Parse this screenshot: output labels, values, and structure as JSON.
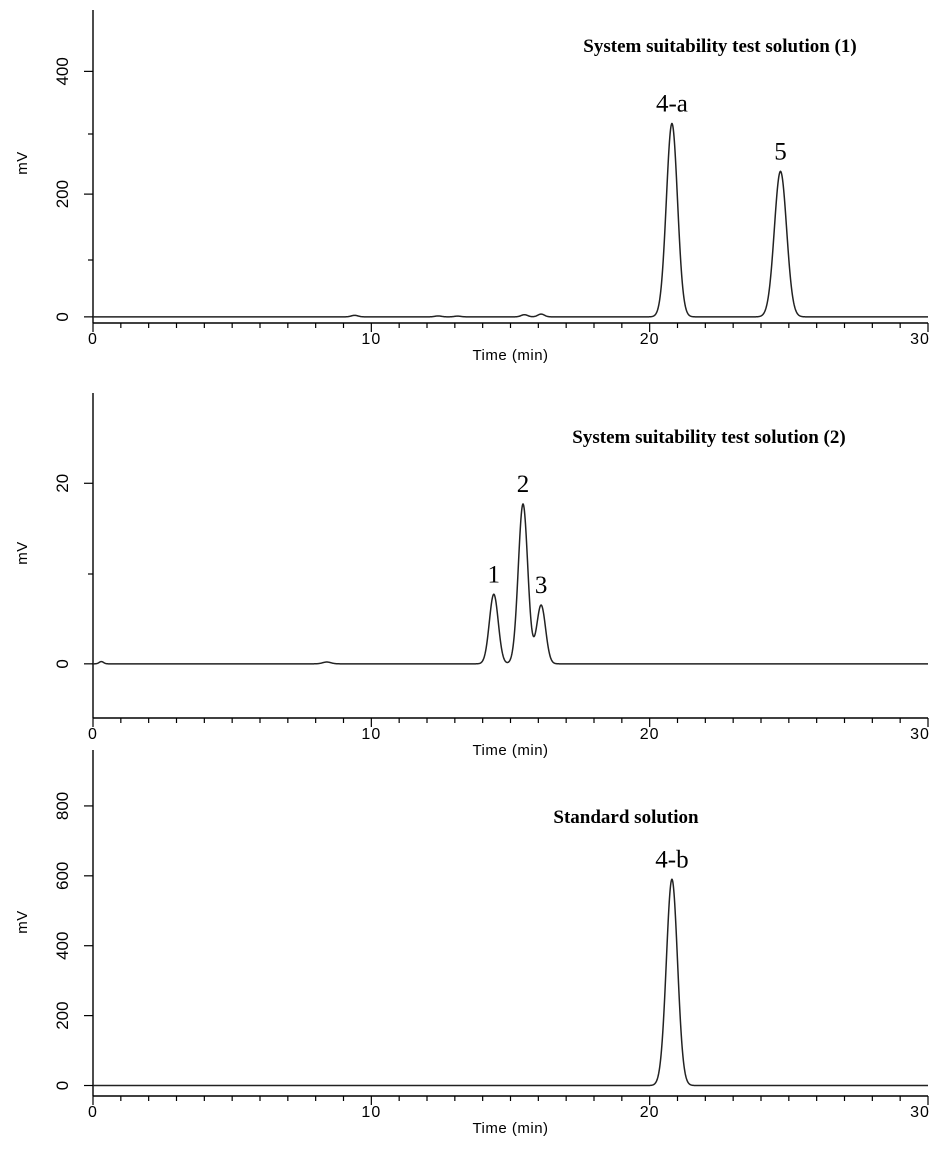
{
  "chart_data": [
    {
      "type": "line",
      "title": "System suitability test solution (1)",
      "xlabel": "Time (min)",
      "ylabel": "mV",
      "xlim": [
        0,
        30
      ],
      "ylim": [
        -10,
        500
      ],
      "xticks": [
        "0",
        "10",
        "20",
        "30"
      ],
      "yticks": [
        "0",
        "200",
        "400"
      ],
      "baseline": 0,
      "peaks": [
        {
          "label": "4-a",
          "x": 20.8,
          "y": 315,
          "width": 0.2
        },
        {
          "label": "5",
          "x": 24.7,
          "y": 237,
          "width": 0.22
        }
      ],
      "minor_bumps": [
        {
          "x": 9.4,
          "y": 2.5,
          "width": 0.12
        },
        {
          "x": 12.4,
          "y": 1.5,
          "width": 0.12
        },
        {
          "x": 13.1,
          "y": 1.2,
          "width": 0.12
        },
        {
          "x": 15.5,
          "y": 3.5,
          "width": 0.12
        },
        {
          "x": 16.1,
          "y": 4.5,
          "width": 0.12
        }
      ]
    },
    {
      "type": "line",
      "title": "System suitability test solution (2)",
      "xlabel": "Time (min)",
      "ylabel": "mV",
      "xlim": [
        0,
        30
      ],
      "ylim": [
        -6,
        30
      ],
      "xticks": [
        "0",
        "10",
        "20",
        "30"
      ],
      "yticks": [
        "0",
        "20"
      ],
      "baseline": 0,
      "peaks": [
        {
          "label": "1",
          "x": 14.4,
          "y": 7.7,
          "width": 0.16
        },
        {
          "label": "2",
          "x": 15.45,
          "y": 17.7,
          "width": 0.17
        },
        {
          "label": "3",
          "x": 16.1,
          "y": 6.5,
          "width": 0.16
        }
      ],
      "minor_bumps": [
        {
          "x": 0.3,
          "y": 0.25,
          "width": 0.08
        },
        {
          "x": 8.4,
          "y": 0.2,
          "width": 0.15
        }
      ]
    },
    {
      "type": "line",
      "title": "Standard solution",
      "xlabel": "Time (min)",
      "ylabel": "mV",
      "xlim": [
        0,
        30
      ],
      "ylim": [
        -30,
        960
      ],
      "xticks": [
        "0",
        "10",
        "20",
        "30"
      ],
      "yticks": [
        "0",
        "200",
        "400",
        "600",
        "800"
      ],
      "baseline": 0,
      "peaks": [
        {
          "label": "4-b",
          "x": 20.8,
          "y": 590,
          "width": 0.2
        }
      ],
      "minor_bumps": []
    }
  ]
}
